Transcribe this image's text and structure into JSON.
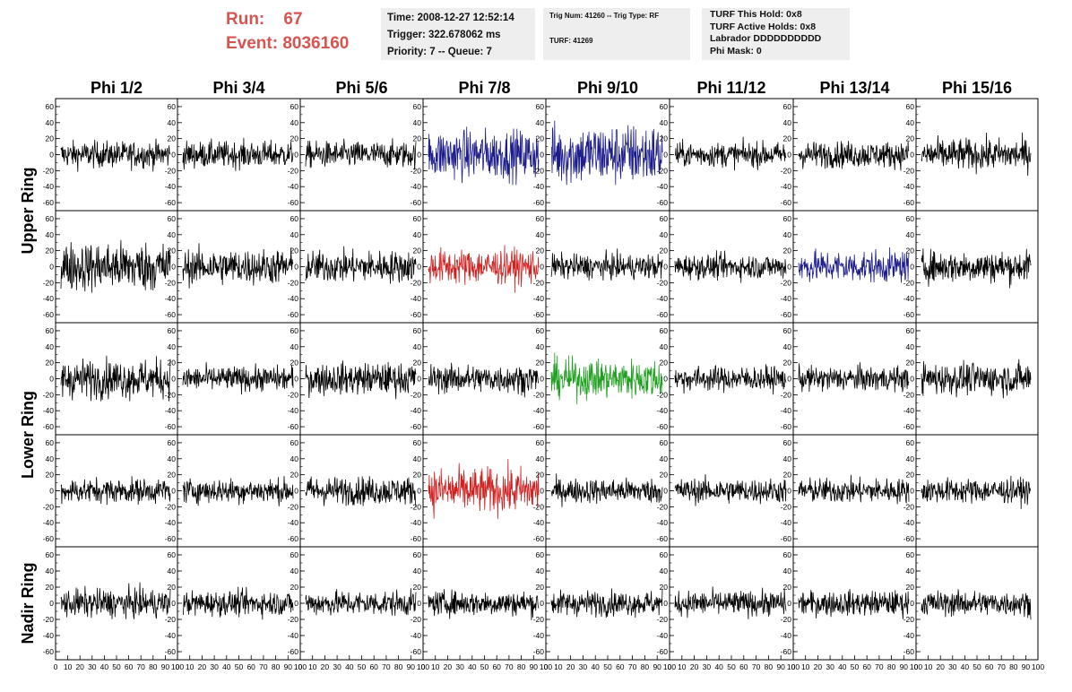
{
  "header": {
    "run_label": "Run:",
    "run_value": "67",
    "event_label": "Event:",
    "event_value": "8036160",
    "time_line": "Time: 2008-12-27 12:52:14",
    "trigger_line": "Trigger: 322.678062 ms",
    "priority_line": "Priority: 7 -- Queue: 7",
    "trig_line": "Trig Num: 41260 -- Trig Type: RF",
    "turf_line": "TURF: 41269",
    "turf_hold": "TURF This Hold: 0x8",
    "turf_active": "TURF Active Holds: 0x8",
    "labrador": "Labrador DDDDDDDDDD",
    "phi_mask": "Phi Mask: 0"
  },
  "colors": {
    "default": "#000000",
    "blue": "#1c1c8c",
    "red": "#d02020",
    "green": "#20a020",
    "title_red": "#d9534f",
    "box_bg": "#eeeeee"
  },
  "chart_data": {
    "type": "line",
    "title": "",
    "columns": [
      "Phi 1/2",
      "Phi 3/4",
      "Phi 5/6",
      "Phi 7/8",
      "Phi 9/10",
      "Phi 11/12",
      "Phi 13/14",
      "Phi 15/16"
    ],
    "rows": [
      "Upper Ring",
      "Upper Ring",
      "Lower Ring",
      "Lower Ring",
      "Nadir Ring"
    ],
    "row_labels": [
      "Upper Ring",
      "Lower Ring",
      "Nadir Ring"
    ],
    "xlim": [
      0,
      100
    ],
    "ylim": [
      -70,
      70
    ],
    "x_ticks": [
      "0",
      "10",
      "20",
      "30",
      "40",
      "50",
      "60",
      "70",
      "80",
      "90",
      "100"
    ],
    "y_ticks": [
      "60",
      "40",
      "20",
      "0",
      "-20",
      "-40",
      "-60"
    ],
    "n_samples": 260,
    "amplitudes": [
      [
        15,
        15,
        15,
        28,
        35,
        14,
        15,
        18
      ],
      [
        28,
        20,
        18,
        20,
        14,
        14,
        18,
        18
      ],
      [
        22,
        14,
        18,
        16,
        22,
        14,
        14,
        18
      ],
      [
        14,
        14,
        16,
        26,
        14,
        14,
        14,
        14
      ],
      [
        16,
        14,
        14,
        14,
        14,
        14,
        14,
        14
      ]
    ],
    "trace_colors": [
      [
        "default",
        "default",
        "default",
        "blue",
        "blue",
        "default",
        "default",
        "default"
      ],
      [
        "default",
        "default",
        "default",
        "red",
        "default",
        "default",
        "blue",
        "default"
      ],
      [
        "default",
        "default",
        "default",
        "default",
        "green",
        "default",
        "default",
        "default"
      ],
      [
        "default",
        "default",
        "default",
        "red",
        "default",
        "default",
        "default",
        "default"
      ],
      [
        "default",
        "default",
        "default",
        "default",
        "default",
        "default",
        "default",
        "default"
      ]
    ]
  }
}
